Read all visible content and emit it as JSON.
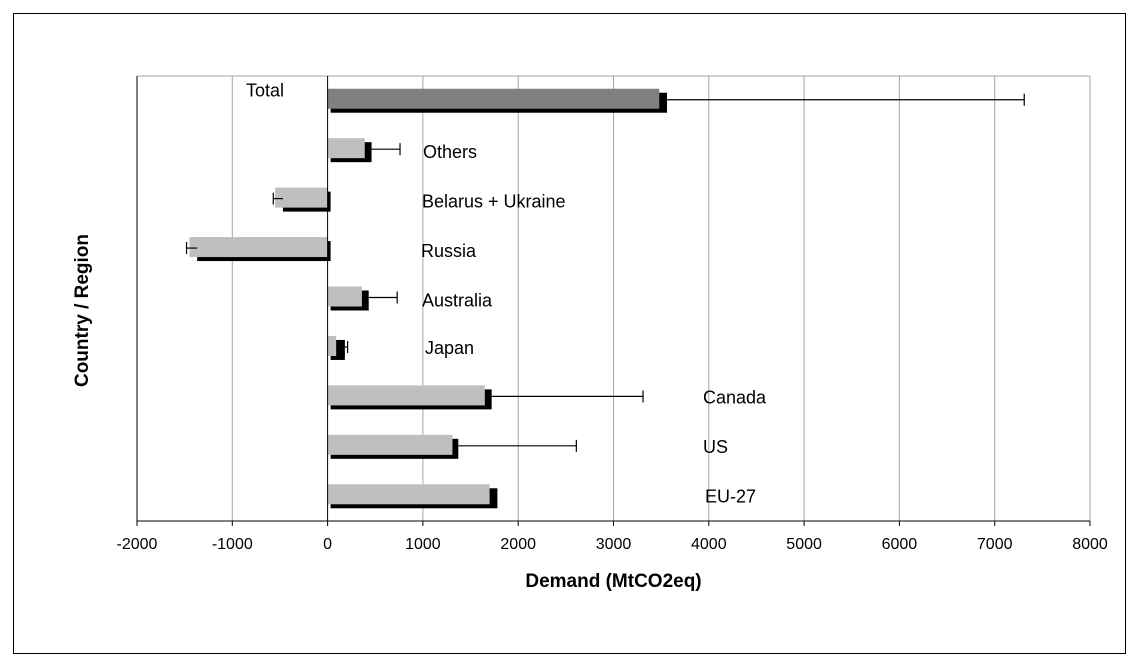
{
  "chart_data": {
    "type": "bar",
    "orientation": "horizontal",
    "xlabel": "Demand (MtCO2eq)",
    "ylabel": "Country / Region",
    "xlim": [
      -2000,
      8000
    ],
    "xticks": [
      -2000,
      -1000,
      0,
      1000,
      2000,
      3000,
      4000,
      5000,
      6000,
      7000,
      8000
    ],
    "grid": "vertical",
    "categories": [
      "Total",
      "Others",
      "Belarus + Ukraine",
      "Russia",
      "Australia",
      "Japan",
      "Canada",
      "US",
      "EU-27"
    ],
    "series": [
      {
        "values": [
          3480,
          390,
          -550,
          -1450,
          360,
          90,
          1650,
          1310,
          1700
        ]
      },
      {
        "values": [
          3530,
          430,
          -500,
          -1400,
          400,
          150,
          1690,
          1340,
          1750
        ]
      }
    ],
    "error_bars": [
      7310,
      760,
      -570,
      -1480,
      730,
      210,
      3310,
      2610,
      null
    ],
    "colors": {
      "series_light": "#bfbfbf",
      "series_dark": "#000000",
      "total_bar": "#808080",
      "grid": "#a6a6a6"
    }
  }
}
